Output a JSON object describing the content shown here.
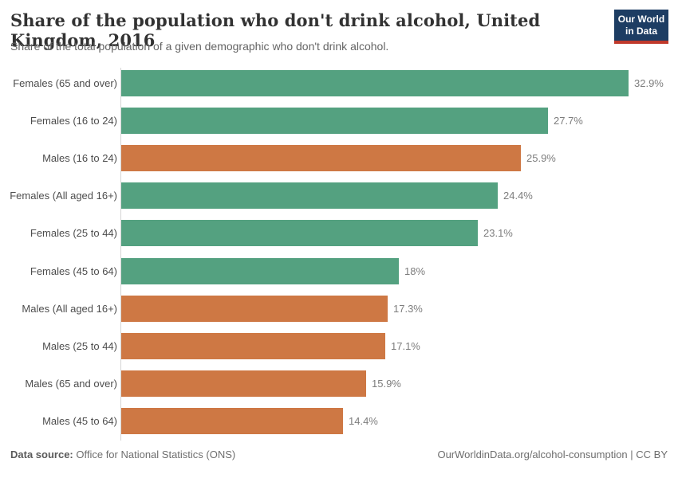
{
  "header": {
    "title": "Share of the population who don't drink alcohol, United Kingdom, 2016",
    "subtitle": "Share of the total population of a given demographic who don't drink alcohol.",
    "logo": {
      "line1": "Our World",
      "line2": "in Data",
      "bg_color": "#1d3d63",
      "strip_color": "#c0392b"
    }
  },
  "chart_data": {
    "type": "bar",
    "orientation": "horizontal",
    "title": "Share of the population who don't drink alcohol, United Kingdom, 2016",
    "subtitle": "Share of the total population of a given demographic who don't drink alcohol.",
    "categories": [
      "Females (65 and over)",
      "Females (16 to 24)",
      "Males (16 to 24)",
      "Females (All aged 16+)",
      "Females (25 to 44)",
      "Females (45 to 64)",
      "Males (All aged 16+)",
      "Males (25 to 44)",
      "Males (65 and over)",
      "Males (45 to 64)"
    ],
    "values": [
      32.9,
      27.7,
      25.9,
      24.4,
      23.1,
      18,
      17.3,
      17.1,
      15.9,
      14.4
    ],
    "value_labels": [
      "32.9%",
      "27.7%",
      "25.9%",
      "24.4%",
      "23.1%",
      "18%",
      "17.3%",
      "17.1%",
      "15.9%",
      "14.4%"
    ],
    "groups": [
      "female",
      "female",
      "male",
      "female",
      "female",
      "female",
      "male",
      "male",
      "male",
      "male"
    ],
    "series_colors": {
      "female": "#54a180",
      "male": "#ce7844"
    },
    "xlim": [
      0,
      33.9
    ],
    "grid": false,
    "legend": "none",
    "axis_color": "#d5d5d5",
    "unit": "%"
  },
  "footer": {
    "data_source_label": "Data source:",
    "data_source_value": " Office for National Statistics (ONS)",
    "attribution": "OurWorldinData.org/alcohol-consumption | CC BY"
  }
}
